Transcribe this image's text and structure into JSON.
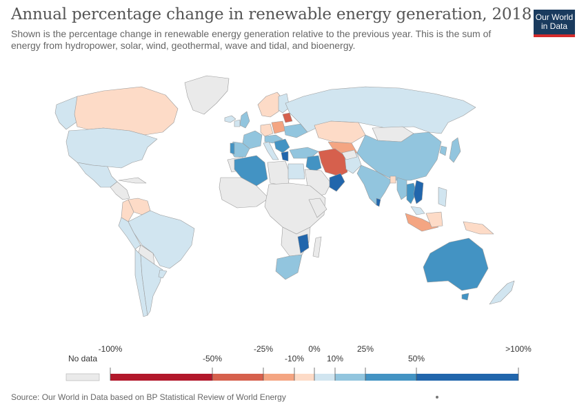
{
  "header": {
    "title": "Annual percentage change in renewable energy generation, 2018",
    "subtitle": "Shown is the percentage change in renewable energy generation relative to the previous year. This is the sum of energy from hydropower, solar, wind, geothermal, wave and tidal, and bioenergy.",
    "logo_line1": "Our World",
    "logo_line2": "in Data"
  },
  "legend": {
    "no_data_label": "No data",
    "no_data_color": "#eaeaea",
    "top_labels": [
      "-100%",
      "-25%",
      "0%",
      "25%",
      ">100%"
    ],
    "bottom_labels": [
      "-50%",
      "-10%",
      "10%",
      "50%"
    ],
    "bins": [
      {
        "range": "-100% to -50%",
        "color": "#b2182b"
      },
      {
        "range": "-50% to -25%",
        "color": "#d6604d"
      },
      {
        "range": "-25% to -10%",
        "color": "#f4a582"
      },
      {
        "range": "-10% to 0%",
        "color": "#fddbc7"
      },
      {
        "range": "0% to 10%",
        "color": "#d1e5f0"
      },
      {
        "range": "10% to 25%",
        "color": "#92c5de"
      },
      {
        "range": "25% to 50%",
        "color": "#4393c3"
      },
      {
        "range": "50% to >100%",
        "color": "#2166ac"
      }
    ]
  },
  "map_colors": {
    "ocean": "#ffffff",
    "border": "#9a9a9a"
  },
  "footer": {
    "source": "Source: Our World in Data based on BP Statistical Review of World Energy"
  }
}
